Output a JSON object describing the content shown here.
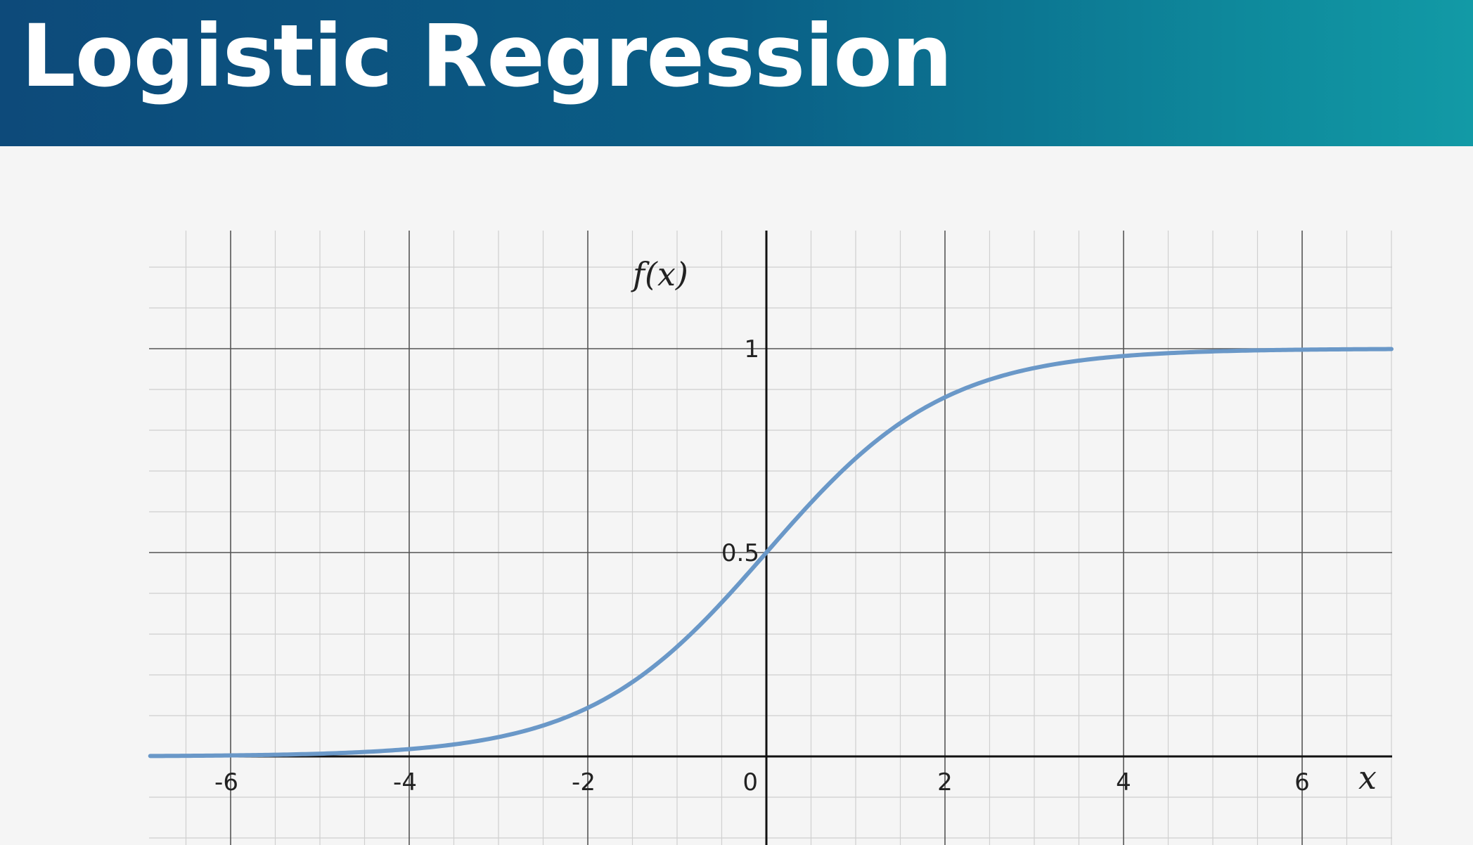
{
  "header": {
    "title": "Logistic Regression"
  },
  "colors": {
    "header_gradient_start": "#0d4a7a",
    "header_gradient_end": "#129aa6",
    "curve": "#6a98c8",
    "axis": "#111111",
    "major_grid": "#555555",
    "minor_grid": "#cfcfcf"
  },
  "chart_data": {
    "type": "line",
    "title": "",
    "xlabel": "x",
    "ylabel": "f(x)",
    "xlim": [
      -6.9,
      7
    ],
    "ylim": [
      -0.21,
      1.32
    ],
    "x_ticks": [
      -6,
      -4,
      -2,
      0,
      2,
      4,
      6
    ],
    "x_tick_labels": [
      "-6",
      "-4",
      "-2",
      "0",
      "2",
      "4",
      "6"
    ],
    "y_ticks": [
      0.5,
      1
    ],
    "y_tick_labels": [
      "0.5",
      "1"
    ],
    "grid": true,
    "minor_grid_step": 0.5,
    "major_grid_step_x": 2,
    "major_grid_step_y": 0.5,
    "minor_grid_step_y": 0.1,
    "series": [
      {
        "function": "1 / (1 + e^(-x))",
        "x": [
          -6.9,
          -6,
          -5,
          -4,
          -3,
          -2,
          -1.5,
          -1,
          -0.5,
          0,
          0.5,
          1,
          1.5,
          2,
          3,
          4,
          5,
          6,
          7
        ],
        "y": [
          0.001,
          0.0025,
          0.0067,
          0.018,
          0.047,
          0.119,
          0.182,
          0.269,
          0.378,
          0.5,
          0.622,
          0.731,
          0.818,
          0.881,
          0.953,
          0.982,
          0.993,
          0.9975,
          0.999
        ]
      }
    ]
  }
}
